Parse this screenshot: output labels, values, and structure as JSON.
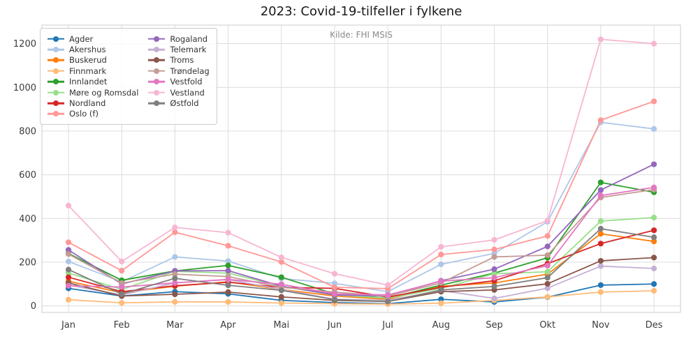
{
  "chart_data": {
    "type": "line",
    "title": "2023: Covid-19-tilfeller i fylkene",
    "subtitle": "Kilde: FHI MSIS",
    "x": [
      "Jan",
      "Feb",
      "Mar",
      "Apr",
      "Mai",
      "Jun",
      "Jul",
      "Aug",
      "Sep",
      "Okt",
      "Nov",
      "Des"
    ],
    "yticks": [
      0,
      200,
      400,
      600,
      800,
      1000,
      1200
    ],
    "ylim": [
      -30,
      1285
    ],
    "grid": true,
    "legend_position": "upper left",
    "legend_columns": 2,
    "series": [
      {
        "name": "Agder",
        "color": "#1f77b4",
        "values": [
          80,
          45,
          65,
          55,
          25,
          15,
          10,
          30,
          18,
          40,
          95,
          100
        ]
      },
      {
        "name": "Akershus",
        "color": "#aec7e8",
        "values": [
          203,
          110,
          224,
          205,
          125,
          103,
          65,
          190,
          240,
          385,
          840,
          810
        ]
      },
      {
        "name": "Buskerud",
        "color": "#ff7f0e",
        "values": [
          113,
          60,
          90,
          110,
          75,
          45,
          30,
          90,
          105,
          145,
          330,
          295
        ]
      },
      {
        "name": "Finnmark",
        "color": "#ffbb78",
        "values": [
          28,
          14,
          18,
          18,
          13,
          10,
          8,
          12,
          25,
          41,
          63,
          69
        ]
      },
      {
        "name": "Innlandet",
        "color": "#2ca02c",
        "values": [
          240,
          117,
          160,
          185,
          131,
          55,
          35,
          95,
          150,
          220,
          565,
          520
        ]
      },
      {
        "name": "Møre og Romsdal",
        "color": "#98df8a",
        "values": [
          150,
          75,
          158,
          150,
          90,
          50,
          35,
          80,
          147,
          156,
          388,
          404
        ]
      },
      {
        "name": "Nordland",
        "color": "#d62728",
        "values": [
          131,
          65,
          92,
          108,
          85,
          80,
          40,
          85,
          115,
          193,
          285,
          346
        ]
      },
      {
        "name": "Oslo (f)",
        "color": "#ff9896",
        "values": [
          291,
          161,
          337,
          275,
          201,
          85,
          79,
          235,
          258,
          320,
          850,
          936
        ]
      },
      {
        "name": "Rogaland",
        "color": "#9467bd",
        "values": [
          256,
          100,
          160,
          161,
          90,
          50,
          45,
          115,
          168,
          272,
          530,
          648
        ]
      },
      {
        "name": "Telemark",
        "color": "#c5b0d5",
        "values": [
          95,
          50,
          105,
          120,
          75,
          30,
          25,
          70,
          34,
          81,
          182,
          171
        ]
      },
      {
        "name": "Troms",
        "color": "#8c564b",
        "values": [
          105,
          45,
          53,
          63,
          41,
          25,
          20,
          65,
          73,
          101,
          206,
          221
        ]
      },
      {
        "name": "Trøndelag",
        "color": "#c49c94",
        "values": [
          237,
          104,
          145,
          134,
          85,
          63,
          45,
          105,
          224,
          232,
          496,
          532
        ]
      },
      {
        "name": "Vestfold",
        "color": "#e377c2",
        "values": [
          92,
          86,
          105,
          121,
          99,
          55,
          50,
          113,
          129,
          184,
          505,
          542
        ]
      },
      {
        "name": "Vestland",
        "color": "#f7b6d2",
        "values": [
          459,
          203,
          359,
          335,
          222,
          147,
          95,
          270,
          302,
          390,
          1220,
          1200
        ]
      },
      {
        "name": "Østfold",
        "color": "#7f7f7f",
        "values": [
          166,
          54,
          126,
          94,
          71,
          29,
          20,
          73,
          89,
          129,
          353,
          314
        ]
      }
    ]
  },
  "colors": {
    "grid": "#dcdcdc",
    "frame": "#d4d4d4",
    "tick_label": "#3b3b3b",
    "title": "#1a1a1a",
    "subtitle": "#8a8a8a",
    "background": "#ffffff"
  }
}
